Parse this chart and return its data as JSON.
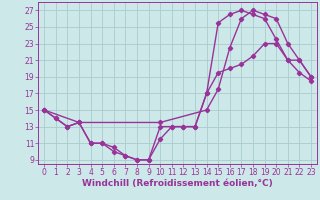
{
  "bg_color": "#cce8e8",
  "grid_color": "#aacccc",
  "line_color": "#993399",
  "marker_style": "D",
  "marker_size": 2.2,
  "line_width": 1.0,
  "xlabel": "Windchill (Refroidissement éolien,°C)",
  "xlabel_fontsize": 6.5,
  "tick_fontsize": 5.5,
  "ylim": [
    8.5,
    28
  ],
  "xlim": [
    -0.5,
    23.5
  ],
  "yticks": [
    9,
    11,
    13,
    15,
    17,
    19,
    21,
    23,
    25,
    27
  ],
  "xticks": [
    0,
    1,
    2,
    3,
    4,
    5,
    6,
    7,
    8,
    9,
    10,
    11,
    12,
    13,
    14,
    15,
    16,
    17,
    18,
    19,
    20,
    21,
    22,
    23
  ],
  "line1_x": [
    0,
    1,
    2,
    3,
    4,
    5,
    6,
    7,
    8,
    9,
    10,
    11,
    12,
    13,
    14,
    15,
    16,
    17,
    18,
    19,
    20,
    21,
    22,
    23
  ],
  "line1_y": [
    15.0,
    14.0,
    13.0,
    13.5,
    11.0,
    11.0,
    10.5,
    9.5,
    9.0,
    9.0,
    11.5,
    13.0,
    13.0,
    13.0,
    17.0,
    19.5,
    20.0,
    20.5,
    21.5,
    23.0,
    23.0,
    21.0,
    21.0,
    19.0
  ],
  "line2_x": [
    0,
    1,
    2,
    3,
    4,
    5,
    6,
    7,
    8,
    9,
    10,
    11,
    12,
    13,
    14,
    15,
    16,
    17,
    18,
    19,
    20,
    21,
    22,
    23
  ],
  "line2_y": [
    15.0,
    14.0,
    13.0,
    13.5,
    11.0,
    11.0,
    10.0,
    9.5,
    9.0,
    9.0,
    13.0,
    13.0,
    13.0,
    13.0,
    17.0,
    25.5,
    26.5,
    27.0,
    26.5,
    26.0,
    23.5,
    21.0,
    19.5,
    18.5
  ],
  "line3_x": [
    0,
    3,
    10,
    14,
    15,
    16,
    17,
    18,
    19,
    20,
    21,
    22,
    23
  ],
  "line3_y": [
    15.0,
    13.5,
    13.5,
    15.0,
    17.5,
    22.5,
    26.0,
    27.0,
    26.5,
    26.0,
    23.0,
    21.0,
    19.0
  ]
}
